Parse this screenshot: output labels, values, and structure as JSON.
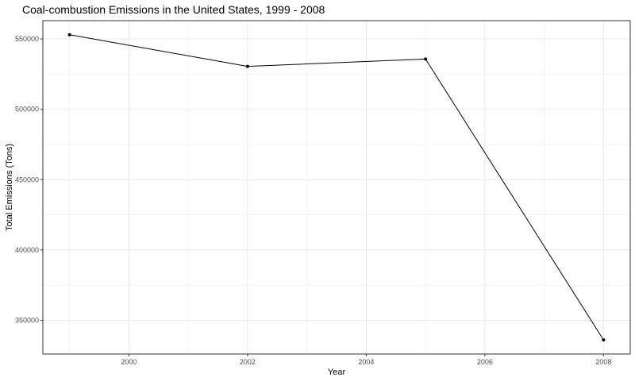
{
  "chart_data": {
    "type": "line",
    "title": "Coal-combustion Emissions in the United States, 1999 - 2008",
    "xlabel": "Year",
    "ylabel": "Total Emissions (Tons)",
    "x": [
      1999,
      2002,
      2005,
      2008
    ],
    "values": [
      553000,
      530500,
      535700,
      336000
    ],
    "xlim": [
      1998.55,
      2008.45
    ],
    "ylim": [
      326000,
      563000
    ],
    "x_ticks": [
      2000,
      2002,
      2004,
      2006,
      2008
    ],
    "y_ticks": [
      350000,
      400000,
      450000,
      500000,
      550000
    ],
    "x_tick_labels": [
      "2000",
      "2002",
      "2004",
      "2006",
      "2008"
    ],
    "y_tick_labels": [
      "350000",
      "400000",
      "450000",
      "500000",
      "550000"
    ],
    "grid": true,
    "line_color": "#000000",
    "grid_color": "#ebebeb",
    "panel_border_color": "#333333"
  }
}
